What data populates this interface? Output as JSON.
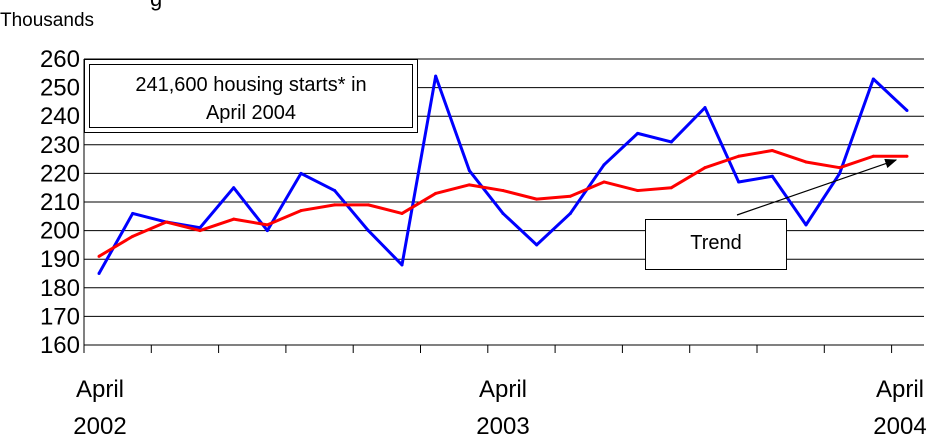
{
  "chart_data": {
    "type": "line",
    "title": "",
    "unit_label": "Thousands",
    "title_fragment": "g",
    "ylim": [
      160,
      260
    ],
    "y_ticks": [
      160,
      170,
      180,
      190,
      200,
      210,
      220,
      230,
      240,
      250,
      260
    ],
    "x_tick_labels": [
      {
        "month": "April",
        "year": "2002",
        "index": 0
      },
      {
        "month": "April",
        "year": "2003",
        "index": 12
      },
      {
        "month": "April",
        "year": "2004",
        "index": 24
      }
    ],
    "x_count": 25,
    "grid": true,
    "series": [
      {
        "key": "actual",
        "color": "#0000ff",
        "values": [
          185,
          206,
          203,
          201,
          215,
          200,
          220,
          214,
          200,
          188,
          254,
          221,
          206,
          195,
          206,
          223,
          234,
          231,
          243,
          217,
          219,
          202,
          220,
          253,
          242
        ]
      },
      {
        "name": "Trend",
        "color": "#ff0000",
        "values": [
          191,
          198,
          203,
          200,
          204,
          202,
          207,
          209,
          209,
          206,
          213,
          216,
          214,
          211,
          212,
          217,
          214,
          215,
          222,
          226,
          228,
          224,
          222,
          226,
          226
        ]
      }
    ],
    "annotations": {
      "callout_line1": "241,600 housing starts* in",
      "callout_line2": "April 2004",
      "trend_label": "Trend"
    }
  }
}
